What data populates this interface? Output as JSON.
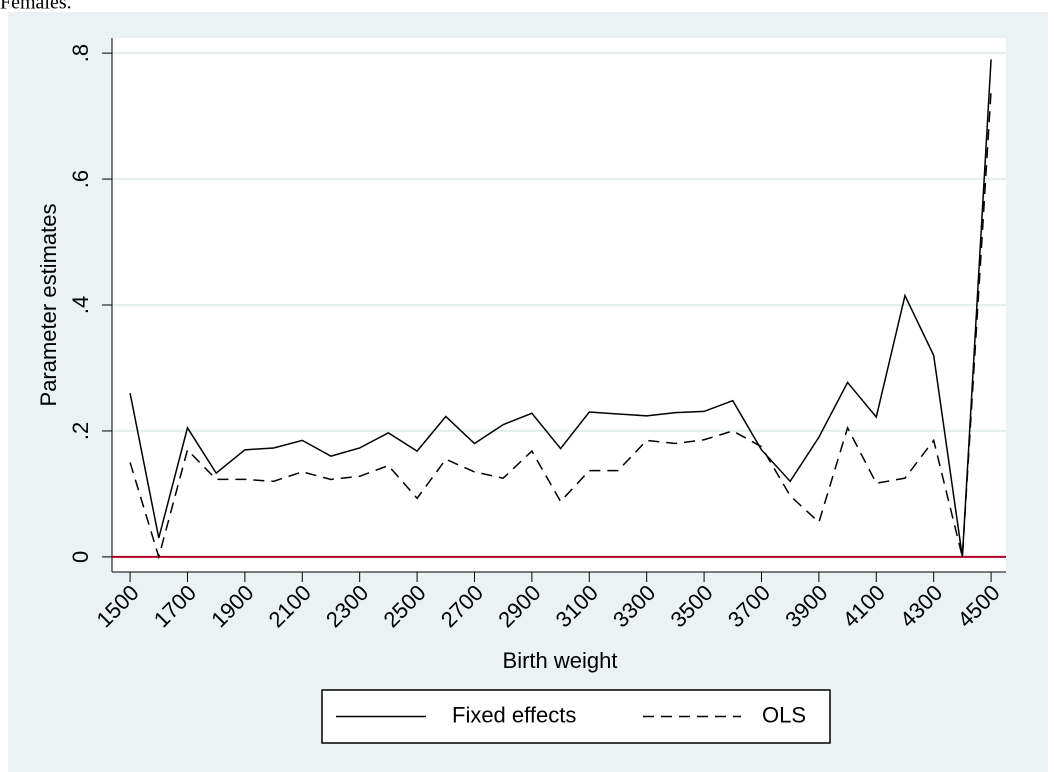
{
  "chart_data": {
    "type": "line",
    "title": "Females.",
    "x_label": "Birth weight",
    "y_label": "Parameter estimates",
    "x": [
      1500,
      1600,
      1700,
      1800,
      1900,
      2000,
      2100,
      2200,
      2300,
      2400,
      2500,
      2600,
      2700,
      2800,
      2900,
      3000,
      3100,
      3200,
      3300,
      3400,
      3500,
      3600,
      3700,
      3800,
      3900,
      4000,
      4100,
      4200,
      4300,
      4400,
      4500
    ],
    "series": [
      {
        "name": "Fixed effects",
        "color": "#000000",
        "dash": "solid",
        "values": [
          0.26,
          0.03,
          0.205,
          0.133,
          0.17,
          0.173,
          0.185,
          0.16,
          0.173,
          0.197,
          0.168,
          0.223,
          0.18,
          0.21,
          0.228,
          0.172,
          0.23,
          0.227,
          0.224,
          0.229,
          0.231,
          0.248,
          0.17,
          0.12,
          0.19,
          0.277,
          0.222,
          0.415,
          0.32,
          0.0,
          0.79
        ]
      },
      {
        "name": "OLS",
        "color": "#000000",
        "dash": "dashed",
        "values": [
          0.15,
          0.0,
          0.17,
          0.123,
          0.123,
          0.12,
          0.135,
          0.123,
          0.128,
          0.145,
          0.093,
          0.155,
          0.135,
          0.125,
          0.168,
          0.088,
          0.137,
          0.137,
          0.185,
          0.18,
          0.186,
          0.2,
          0.175,
          0.097,
          0.055,
          0.205,
          0.117,
          0.125,
          0.185,
          0.0,
          0.74
        ]
      }
    ],
    "xlim": [
      1437,
      4552
    ],
    "ylim": [
      -0.024,
      0.824
    ],
    "xticks": [
      1500,
      1700,
      1900,
      2100,
      2300,
      2500,
      2700,
      2900,
      3100,
      3300,
      3500,
      3700,
      3900,
      4100,
      4300,
      4500
    ],
    "yticks": [
      0,
      {
        "value": 0.2,
        "label": ".2"
      },
      {
        "value": 0.4,
        "label": ".4"
      },
      {
        "value": 0.6,
        "label": ".6"
      },
      {
        "value": 0.8,
        "label": ".8"
      }
    ],
    "grid": true,
    "reference_line": {
      "value": 0,
      "color": "#b5002a"
    },
    "legend": "bottom"
  }
}
